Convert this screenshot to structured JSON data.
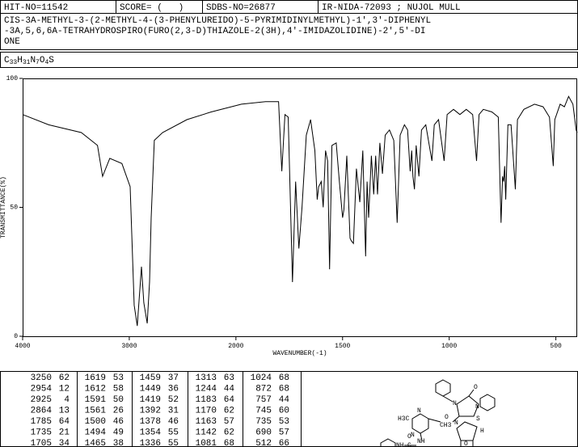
{
  "header": {
    "hit_no": "HIT-NO=11542",
    "score": "SCORE= (   )",
    "sdbs_no": "SDBS-NO=26877",
    "method": "IR-NIDA-72093 ; NUJOL MULL",
    "name_lines": [
      "CIS-3A-METHYL-3-(2-METHYL-4-(3-PHENYLUREIDO)-5-PYRIMIDINYLMETHYL)-1',3'-DIPHENYL",
      "-3A,5,6,6A-TETRAHYDROSPIRO(FURO(2,3-D)THIAZOLE-2(3H),4'-IMIDAZOLIDINE)-2',5'-DI",
      "ONE"
    ],
    "formula": [
      "C",
      "33",
      "H",
      "31",
      "N",
      "7",
      "O",
      "4",
      "S"
    ]
  },
  "chart_data": {
    "type": "line",
    "xlabel": "WAVENUMBER(-1)",
    "ylabel": "TRANSMITTANCE(%)",
    "color": "#000000",
    "xlim": [
      4000,
      400
    ],
    "ylim": [
      0,
      100
    ],
    "xticks": [
      4000,
      3000,
      2000,
      1500,
      1000,
      500
    ],
    "yticks": [
      0,
      50,
      100
    ],
    "x_break": 2000,
    "x": [
      4000,
      3756,
      3450,
      3298,
      3250,
      3183,
      3069,
      2992,
      2954,
      2925,
      2886,
      2864,
      2832,
      2810,
      2795,
      2765,
      2688,
      2460,
      2232,
      1974,
      1861,
      1800,
      1785,
      1770,
      1755,
      1735,
      1720,
      1705,
      1690,
      1670,
      1650,
      1630,
      1619,
      1612,
      1600,
      1591,
      1580,
      1570,
      1561,
      1550,
      1530,
      1515,
      1500,
      1494,
      1480,
      1465,
      1459,
      1449,
      1435,
      1419,
      1405,
      1392,
      1385,
      1378,
      1365,
      1354,
      1345,
      1336,
      1325,
      1313,
      1300,
      1280,
      1260,
      1244,
      1230,
      1210,
      1195,
      1183,
      1176,
      1170,
      1163,
      1155,
      1142,
      1130,
      1110,
      1081,
      1070,
      1050,
      1024,
      1010,
      980,
      950,
      920,
      890,
      872,
      860,
      840,
      800,
      770,
      757,
      750,
      745,
      740,
      735,
      725,
      710,
      690,
      680,
      650,
      600,
      560,
      530,
      512,
      505,
      480,
      460,
      440,
      420,
      405,
      400
    ],
    "values": [
      86,
      82,
      79,
      74,
      62,
      69,
      67,
      58,
      12,
      4,
      27,
      13,
      5,
      21,
      46,
      76,
      79,
      84,
      87,
      90,
      91,
      91,
      64,
      86,
      85,
      21,
      60,
      34,
      50,
      78,
      84,
      72,
      53,
      58,
      60,
      50,
      72,
      68,
      26,
      74,
      75,
      60,
      46,
      49,
      70,
      38,
      37,
      36,
      65,
      52,
      72,
      31,
      60,
      46,
      70,
      55,
      70,
      55,
      75,
      63,
      78,
      80,
      76,
      44,
      78,
      82,
      80,
      64,
      72,
      62,
      57,
      74,
      62,
      80,
      82,
      68,
      82,
      84,
      68,
      86,
      88,
      86,
      88,
      86,
      68,
      86,
      88,
      87,
      85,
      44,
      62,
      60,
      66,
      53,
      82,
      82,
      57,
      84,
      88,
      90,
      89,
      85,
      66,
      84,
      90,
      89,
      93,
      90,
      80,
      79
    ]
  },
  "peak_table": [
    [
      [
        3250,
        62
      ],
      [
        2954,
        12
      ],
      [
        2925,
        4
      ],
      [
        2864,
        13
      ],
      [
        1785,
        64
      ],
      [
        1735,
        21
      ],
      [
        1705,
        34
      ]
    ],
    [
      [
        1619,
        53
      ],
      [
        1612,
        58
      ],
      [
        1591,
        50
      ],
      [
        1561,
        26
      ],
      [
        1500,
        46
      ],
      [
        1494,
        49
      ],
      [
        1465,
        38
      ]
    ],
    [
      [
        1459,
        37
      ],
      [
        1449,
        36
      ],
      [
        1419,
        52
      ],
      [
        1392,
        31
      ],
      [
        1378,
        46
      ],
      [
        1354,
        55
      ],
      [
        1336,
        55
      ]
    ],
    [
      [
        1313,
        63
      ],
      [
        1244,
        44
      ],
      [
        1183,
        64
      ],
      [
        1170,
        62
      ],
      [
        1163,
        57
      ],
      [
        1142,
        62
      ],
      [
        1081,
        68
      ]
    ],
    [
      [
        1024,
        68
      ],
      [
        872,
        68
      ],
      [
        757,
        44
      ],
      [
        745,
        60
      ],
      [
        735,
        53
      ],
      [
        690,
        57
      ],
      [
        512,
        66
      ]
    ]
  ],
  "structure": {
    "labels": [
      "N",
      "O",
      "N",
      "O",
      "S",
      "CH3",
      "N",
      "H",
      "H3C",
      "N",
      "N",
      "O",
      "NH",
      "C",
      "NH",
      "O"
    ]
  }
}
